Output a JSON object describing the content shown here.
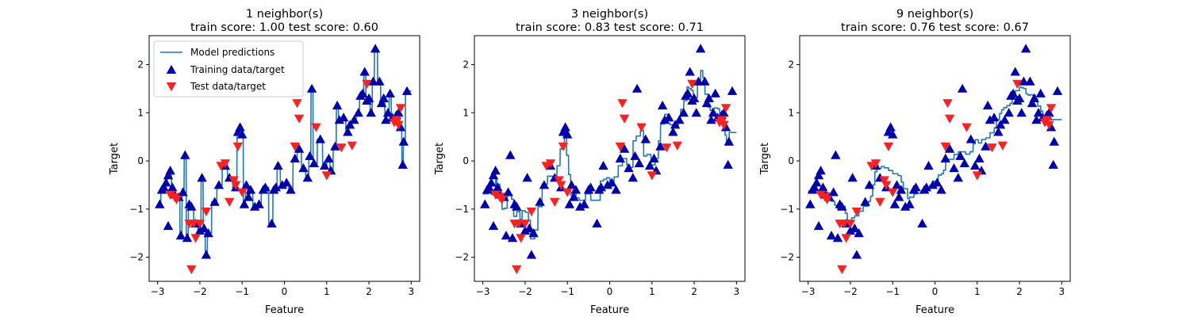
{
  "colors": {
    "line": "#1f77b4",
    "train": "#0000aa",
    "test": "#ff2020"
  },
  "legend": {
    "placement": "upper-left of first panel",
    "entries": [
      "Model predictions",
      "Training data/target",
      "Test data/target"
    ]
  },
  "chart_data": [
    {
      "type": "line",
      "title_line1": "1 neighbor(s)",
      "title_line2": "train score: 1.00 test score: 0.60",
      "xlabel": "Feature",
      "ylabel": "Target",
      "xlim": [
        -3.2,
        3.2
      ],
      "ylim": [
        -2.5,
        2.6
      ],
      "xticks": [
        -3,
        -2,
        -1,
        0,
        1,
        2,
        3
      ],
      "yticks": [
        -2,
        -1,
        0,
        1,
        2
      ],
      "xtick_labels": [
        "−3",
        "−2",
        "−1",
        "0",
        "1",
        "2",
        "3"
      ],
      "ytick_labels": [
        "−2",
        "−1",
        "0",
        "1",
        "2"
      ],
      "k": 1
    },
    {
      "type": "line",
      "title_line1": "3 neighbor(s)",
      "title_line2": "train score: 0.83 test score: 0.71",
      "xlabel": "Feature",
      "ylabel": "Target",
      "xlim": [
        -3.2,
        3.2
      ],
      "ylim": [
        -2.5,
        2.6
      ],
      "xticks": [
        -3,
        -2,
        -1,
        0,
        1,
        2,
        3
      ],
      "yticks": [
        -2,
        -1,
        0,
        1,
        2
      ],
      "xtick_labels": [
        "−3",
        "−2",
        "−1",
        "0",
        "1",
        "2",
        "3"
      ],
      "ytick_labels": [
        "−2",
        "−1",
        "0",
        "1",
        "2"
      ],
      "k": 3
    },
    {
      "type": "line",
      "title_line1": "9 neighbor(s)",
      "title_line2": "train score: 0.76 test score: 0.67",
      "xlabel": "Feature",
      "ylabel": "Target",
      "xlim": [
        -3.2,
        3.2
      ],
      "ylim": [
        -2.5,
        2.6
      ],
      "xticks": [
        -3,
        -2,
        -1,
        0,
        1,
        2,
        3
      ],
      "yticks": [
        -2,
        -1,
        0,
        1,
        2
      ],
      "xtick_labels": [
        "−3",
        "−2",
        "−1",
        "0",
        "1",
        "2",
        "3"
      ],
      "ytick_labels": [
        "−2",
        "−1",
        "0",
        "1",
        "2"
      ],
      "k": 9
    }
  ],
  "train_points": [
    [
      -2.95,
      -0.9
    ],
    [
      -2.9,
      -0.6
    ],
    [
      -2.85,
      -0.55
    ],
    [
      -2.8,
      -0.45
    ],
    [
      -2.75,
      -0.3
    ],
    [
      -2.7,
      -0.2
    ],
    [
      -2.75,
      -1.35
    ],
    [
      -2.65,
      -0.55
    ],
    [
      -2.6,
      -0.7
    ],
    [
      -2.5,
      -0.75
    ],
    [
      -2.45,
      -1.55
    ],
    [
      -2.4,
      -0.65
    ],
    [
      -2.35,
      0.12
    ],
    [
      -2.3,
      -1.6
    ],
    [
      -2.25,
      -0.9
    ],
    [
      -2.2,
      -0.95
    ],
    [
      -2.1,
      -1.3
    ],
    [
      -2.0,
      -1.45
    ],
    [
      -1.95,
      -0.35
    ],
    [
      -1.9,
      -1.4
    ],
    [
      -1.85,
      -1.95
    ],
    [
      -1.8,
      -1.5
    ],
    [
      -1.65,
      -0.85
    ],
    [
      -1.55,
      -0.5
    ],
    [
      -1.4,
      -0.1
    ],
    [
      -1.3,
      -0.35
    ],
    [
      -1.15,
      -0.55
    ],
    [
      -1.1,
      0.6
    ],
    [
      -1.05,
      0.7
    ],
    [
      -1.0,
      0.55
    ],
    [
      -0.95,
      -0.9
    ],
    [
      -0.9,
      -0.5
    ],
    [
      -0.85,
      -0.75
    ],
    [
      -0.8,
      -0.6
    ],
    [
      -0.7,
      -0.95
    ],
    [
      -0.6,
      -0.9
    ],
    [
      -0.5,
      -0.6
    ],
    [
      -0.45,
      -0.55
    ],
    [
      -0.3,
      -1.3
    ],
    [
      -0.25,
      -0.6
    ],
    [
      -0.2,
      -0.55
    ],
    [
      -0.15,
      -0.1
    ],
    [
      -0.05,
      -0.5
    ],
    [
      0.05,
      -0.45
    ],
    [
      0.15,
      -0.6
    ],
    [
      0.25,
      0.05
    ],
    [
      0.35,
      0.25
    ],
    [
      0.45,
      -0.15
    ],
    [
      0.55,
      -0.35
    ],
    [
      0.6,
      0.1
    ],
    [
      0.65,
      1.5
    ],
    [
      0.7,
      -0.05
    ],
    [
      0.85,
      0.45
    ],
    [
      0.95,
      -0.1
    ],
    [
      1.05,
      0.05
    ],
    [
      1.1,
      -0.2
    ],
    [
      1.2,
      0.3
    ],
    [
      1.25,
      1.15
    ],
    [
      1.3,
      0.85
    ],
    [
      1.4,
      0.9
    ],
    [
      1.5,
      0.6
    ],
    [
      1.55,
      0.75
    ],
    [
      1.65,
      0.85
    ],
    [
      1.75,
      1.0
    ],
    [
      1.8,
      1.35
    ],
    [
      1.85,
      1.4
    ],
    [
      1.9,
      1.85
    ],
    [
      1.95,
      1.25
    ],
    [
      2.0,
      1.3
    ],
    [
      2.05,
      1.0
    ],
    [
      2.1,
      1.65
    ],
    [
      2.15,
      2.33
    ],
    [
      2.25,
      1.65
    ],
    [
      2.3,
      1.2
    ],
    [
      2.35,
      1.3
    ],
    [
      2.4,
      0.85
    ],
    [
      2.45,
      1.0
    ],
    [
      2.5,
      1.4
    ],
    [
      2.55,
      0.9
    ],
    [
      2.65,
      0.95
    ],
    [
      2.7,
      1.0
    ],
    [
      2.75,
      0.7
    ],
    [
      2.8,
      -0.08
    ],
    [
      2.82,
      0.4
    ],
    [
      2.9,
      1.45
    ]
  ],
  "test_points": [
    [
      -2.7,
      -0.7
    ],
    [
      -2.6,
      -0.75
    ],
    [
      -2.55,
      -0.8
    ],
    [
      -2.25,
      -1.3
    ],
    [
      -2.2,
      -2.25
    ],
    [
      -2.15,
      -1.3
    ],
    [
      -2.1,
      -1.6
    ],
    [
      -2.0,
      -1.3
    ],
    [
      -1.85,
      -1.05
    ],
    [
      -1.5,
      -0.1
    ],
    [
      -1.4,
      -0.05
    ],
    [
      -1.3,
      -0.85
    ],
    [
      -1.2,
      -0.4
    ],
    [
      -1.15,
      -0.5
    ],
    [
      -1.1,
      0.3
    ],
    [
      -1.0,
      -0.65
    ],
    [
      0.25,
      0.3
    ],
    [
      0.3,
      1.2
    ],
    [
      0.35,
      0.88
    ],
    [
      0.75,
      0.7
    ],
    [
      1.0,
      -0.3
    ],
    [
      1.35,
      0.28
    ],
    [
      1.6,
      0.32
    ],
    [
      1.95,
      1.6
    ],
    [
      2.6,
      0.8
    ],
    [
      2.7,
      0.75
    ],
    [
      2.75,
      1.1
    ],
    [
      2.65,
      0.85
    ]
  ]
}
